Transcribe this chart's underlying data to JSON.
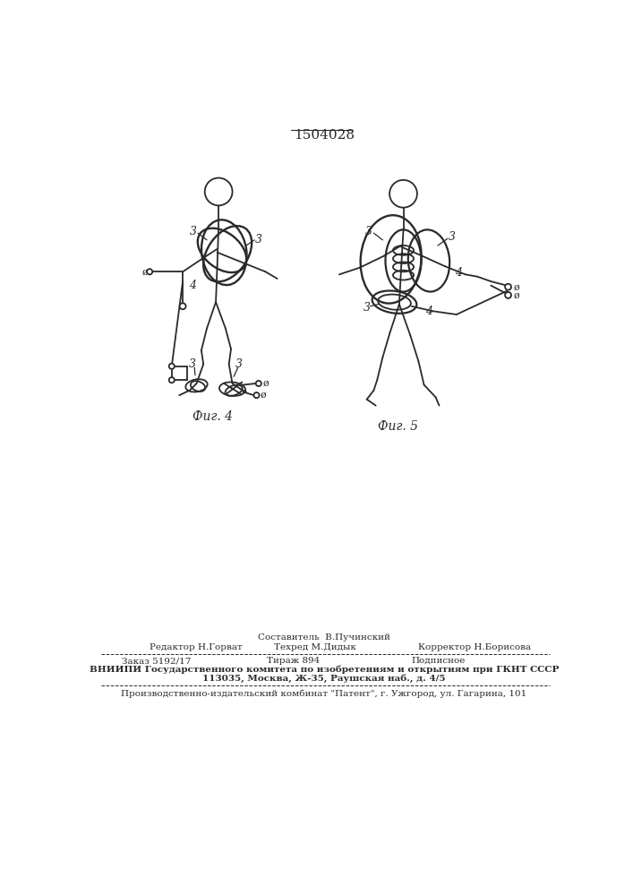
{
  "bg_color": "#ffffff",
  "line_color": "#2a2a2a",
  "lw": 1.3,
  "lw_thick": 1.7,
  "title": "1504028",
  "fig4_label": "Фиг. 4",
  "fig5_label": "Фиг. 5",
  "bottom_texts": {
    "sostavitel": "Составитель  В.Пучинский",
    "redaktor": "Редактор Н.Горват",
    "tehred": "Техред М.Дидык",
    "korrektor": "Корректор Н.Борисова",
    "zakaz": "Заказ 5192/17",
    "tirazh": "Тираж 894",
    "podpisnoe": "Подписное",
    "vniipи": "ВНИИПИ Государственного комитета по изобретениям и открытиям при ГКНТ СССР",
    "address": "113035, Москва, Ж-35, Раушская наб., д. 4/5",
    "kombinat": "Производственно-издательский комбинат \"Патент\", г. Ужгород, ул. Гагарина, 101"
  }
}
